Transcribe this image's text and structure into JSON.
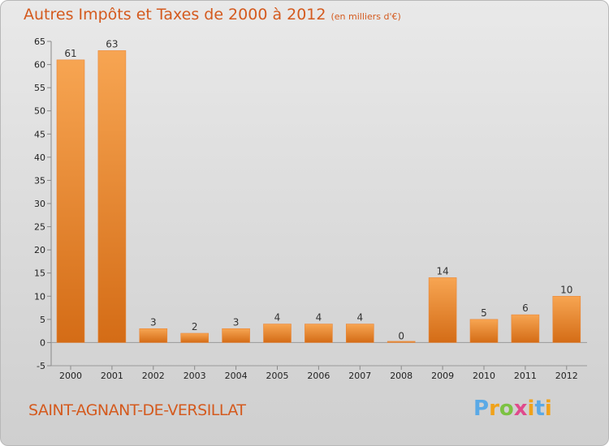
{
  "chart_data": {
    "type": "bar",
    "title": "Autres Impôts et Taxes de 2000 à 2012",
    "subtitle": "(en milliers d'€)",
    "categories": [
      "2000",
      "2001",
      "2002",
      "2003",
      "2004",
      "2005",
      "2006",
      "2007",
      "2008",
      "2009",
      "2010",
      "2011",
      "2012"
    ],
    "values": [
      61,
      63,
      3,
      2,
      3,
      4,
      4,
      4,
      0,
      14,
      5,
      6,
      10
    ],
    "data_labels": [
      "61",
      "63",
      "3",
      "2",
      "3",
      "4",
      "4",
      "4",
      "0",
      "14",
      "5",
      "6",
      "10"
    ],
    "ylim": [
      -5,
      65
    ],
    "yticks": [
      -5,
      0,
      5,
      10,
      15,
      20,
      25,
      30,
      35,
      40,
      45,
      50,
      55,
      60,
      65
    ],
    "grid": false,
    "bar_color": "#f0922e"
  },
  "commune": "SAINT-AGNANT-DE-VERSILLAT",
  "logo": {
    "text": "Proxiti"
  }
}
